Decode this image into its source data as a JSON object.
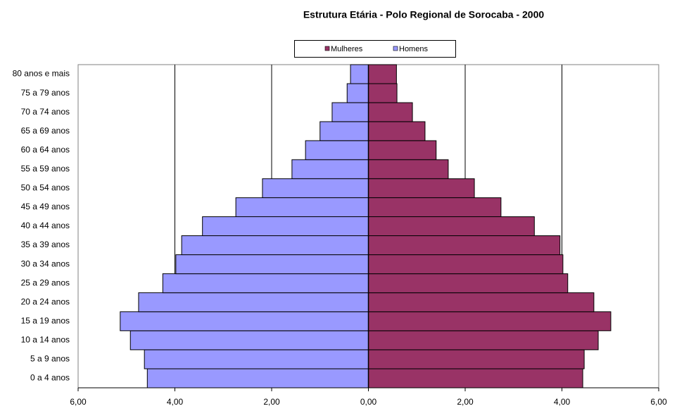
{
  "chart_data": {
    "type": "bar",
    "orientation": "horizontal",
    "stacked": true,
    "title": "Estrutura Etária - Polo Regional de Sorocaba - 2000",
    "categories": [
      "0 a 4 anos",
      "5 a 9 anos",
      "10 a 14 anos",
      "15 a 19 anos",
      "20 a 24 anos",
      "25 a 29 anos",
      "30 a 34 anos",
      "35 a 39 anos",
      "40 a 44 anos",
      "45 a 49 anos",
      "50 a 54 anos",
      "55 a 59 anos",
      "60 a 64 anos",
      "65 a 69 anos",
      "70 a 74 anos",
      "75 a 79 anos",
      "80 anos e mais"
    ],
    "series": [
      {
        "name": "Mulheres",
        "color": "#993366",
        "values": [
          4.43,
          4.46,
          4.75,
          5.01,
          4.66,
          4.12,
          4.02,
          3.96,
          3.43,
          2.74,
          2.19,
          1.65,
          1.4,
          1.17,
          0.91,
          0.59,
          0.58
        ]
      },
      {
        "name": "Homens",
        "color": "#9999FF",
        "values": [
          -4.57,
          -4.63,
          -4.92,
          -5.13,
          -4.75,
          -4.25,
          -3.98,
          -3.86,
          -3.43,
          -2.74,
          -2.19,
          -1.58,
          -1.3,
          -1.0,
          -0.75,
          -0.44,
          -0.37
        ]
      }
    ],
    "xlim": [
      -6,
      6
    ],
    "xticks": [
      {
        "value": -6,
        "label": "6,00"
      },
      {
        "value": -4,
        "label": "4,00"
      },
      {
        "value": -2,
        "label": "2,00"
      },
      {
        "value": 0,
        "label": "0,00"
      },
      {
        "value": 2,
        "label": "2,00"
      },
      {
        "value": 4,
        "label": "4,00"
      },
      {
        "value": 6,
        "label": "6,00"
      }
    ],
    "grid": true,
    "legend": "top"
  }
}
